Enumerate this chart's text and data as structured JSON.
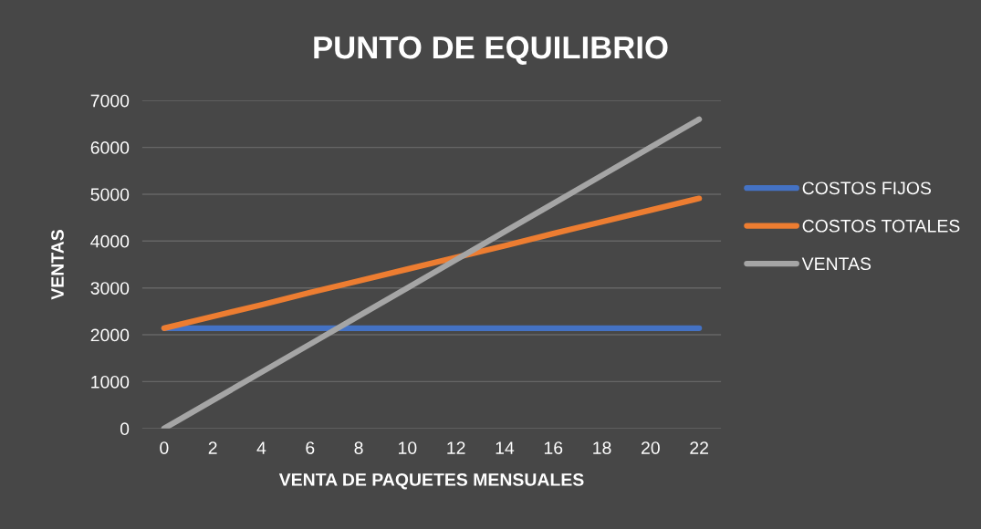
{
  "chart_data": {
    "type": "line",
    "title": "PUNTO DE EQUILIBRIO",
    "xlabel": "VENTA DE PAQUETES MENSUALES",
    "ylabel": "VENTAS",
    "categories": [
      "0",
      "2",
      "4",
      "6",
      "8",
      "10",
      "12",
      "14",
      "16",
      "18",
      "20",
      "22"
    ],
    "series": [
      {
        "name": "COSTOS FIJOS",
        "color": "#4472c4",
        "values": [
          2140,
          2140,
          2140,
          2140,
          2140,
          2140,
          2140,
          2140,
          2140,
          2140,
          2140,
          2140
        ]
      },
      {
        "name": "COSTOS TOTALES",
        "color": "#ed7d31",
        "values": [
          2140,
          2390,
          2640,
          2900,
          3150,
          3400,
          3650,
          3900,
          4160,
          4410,
          4660,
          4910
        ]
      },
      {
        "name": "VENTAS",
        "color": "#a5a5a5",
        "values": [
          0,
          600,
          1200,
          1800,
          2400,
          3000,
          3600,
          4200,
          4800,
          5400,
          6000,
          6600
        ]
      }
    ],
    "ylim": [
      0,
      7000
    ],
    "yticks": [
      0,
      1000,
      2000,
      3000,
      4000,
      5000,
      6000,
      7000
    ],
    "grid": "y",
    "legend": "right",
    "marker": "none",
    "line_style": "solid"
  }
}
